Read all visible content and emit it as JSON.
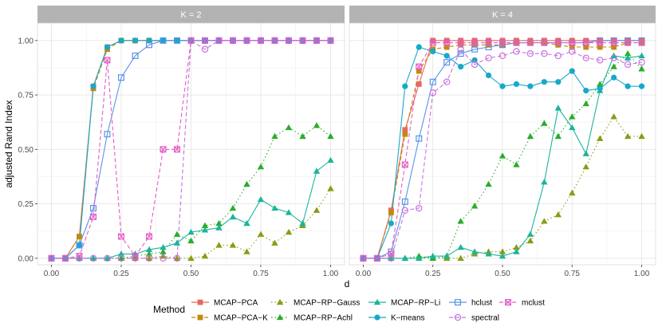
{
  "chart_data": {
    "type": "line",
    "ylabel": "adjusted Rand Index",
    "xlabel": "d",
    "x": [
      0,
      0.05,
      0.1,
      0.15,
      0.2,
      0.25,
      0.3,
      0.35,
      0.4,
      0.45,
      0.5,
      0.55,
      0.6,
      0.65,
      0.7,
      0.75,
      0.8,
      0.85,
      0.9,
      0.95,
      1.0
    ],
    "xlim": [
      -0.05,
      1.05
    ],
    "ylim": [
      -0.03,
      1.08
    ],
    "xticks": [
      "0.00",
      "0.25",
      "0.50",
      "0.75",
      "1.00"
    ],
    "xtick_values": [
      0,
      0.25,
      0.5,
      0.75,
      1.0
    ],
    "yticks": [
      "0.00",
      "0.25",
      "0.50",
      "0.75",
      "1.00"
    ],
    "ytick_values": [
      0,
      0.25,
      0.5,
      0.75,
      1.0
    ],
    "legend": {
      "title": "Method",
      "position": "bottom"
    },
    "methods": [
      {
        "key": "mcap_pca",
        "name": "MCAP−PCA",
        "color": "#E8685C",
        "shape": "square",
        "dash": "solid"
      },
      {
        "key": "mcap_pca_k",
        "name": "MCAP−PCA−K",
        "color": "#C38A0E",
        "shape": "square",
        "dash": "dashed"
      },
      {
        "key": "mcap_rp_gauss",
        "name": "MCAP−RP−Gauss",
        "color": "#8C9B14",
        "shape": "triangle",
        "dash": "dotted"
      },
      {
        "key": "mcap_rp_achl",
        "name": "MCAP−RP−Achl",
        "color": "#2AAD2A",
        "shape": "triangle",
        "dash": "dotted"
      },
      {
        "key": "mcap_rp_li",
        "name": "MCAP−RP−Li",
        "color": "#1AB59A",
        "shape": "triangle",
        "dash": "solid"
      },
      {
        "key": "kmeans",
        "name": "K−means",
        "color": "#16A9C9",
        "shape": "circle",
        "dash": "solid"
      },
      {
        "key": "hclust",
        "name": "hclust",
        "color": "#5B93E8",
        "shape": "square-open",
        "dash": "solid"
      },
      {
        "key": "spectral",
        "name": "spectral",
        "color": "#C971E0",
        "shape": "circle-open",
        "dash": "dashed"
      },
      {
        "key": "mclust",
        "name": "mclust",
        "color": "#E55CC6",
        "shape": "square-x",
        "dash": "dashed"
      }
    ],
    "panels": [
      {
        "label": "K = 2",
        "series": {
          "mcap_pca": [
            0.0,
            0.0,
            0.1,
            0.79,
            0.97,
            1.0,
            1.0,
            1.0,
            1.0,
            1.0,
            1.0,
            1.0,
            1.0,
            1.0,
            1.0,
            1.0,
            1.0,
            1.0,
            1.0,
            1.0,
            1.0
          ],
          "mcap_pca_k": [
            0.0,
            0.0,
            0.1,
            0.78,
            0.96,
            1.0,
            1.0,
            1.0,
            1.0,
            1.0,
            1.0,
            1.0,
            1.0,
            1.0,
            1.0,
            1.0,
            1.0,
            1.0,
            1.0,
            1.0,
            1.0
          ],
          "mcap_rp_gauss": [
            0.0,
            0.0,
            0.0,
            0.0,
            0.0,
            0.0,
            0.0,
            0.0,
            0.01,
            0.0,
            0.0,
            0.01,
            0.06,
            0.06,
            0.03,
            0.11,
            0.07,
            0.12,
            0.15,
            0.22,
            0.32
          ],
          "mcap_rp_achl": [
            0.0,
            0.0,
            0.0,
            0.0,
            0.0,
            0.0,
            0.01,
            0.02,
            0.03,
            0.11,
            0.08,
            0.15,
            0.16,
            0.23,
            0.34,
            0.42,
            0.56,
            0.6,
            0.56,
            0.61,
            0.56
          ],
          "mcap_rp_li": [
            0.0,
            0.0,
            0.0,
            0.0,
            0.0,
            0.02,
            0.02,
            0.04,
            0.05,
            0.07,
            0.12,
            0.13,
            0.14,
            0.19,
            0.16,
            0.27,
            0.23,
            0.21,
            0.16,
            0.4,
            0.45
          ],
          "kmeans": [
            0.0,
            0.0,
            0.06,
            0.79,
            0.97,
            1.0,
            1.0,
            1.0,
            1.0,
            1.0,
            1.0,
            1.0,
            1.0,
            1.0,
            1.0,
            1.0,
            1.0,
            1.0,
            1.0,
            1.0,
            1.0
          ],
          "hclust": [
            0.0,
            0.0,
            0.06,
            0.23,
            0.57,
            0.83,
            0.93,
            0.98,
            1.0,
            1.0,
            1.0,
            1.0,
            1.0,
            1.0,
            1.0,
            1.0,
            1.0,
            1.0,
            1.0,
            1.0,
            1.0
          ],
          "spectral": [
            0.0,
            0.0,
            0.0,
            0.0,
            0.0,
            0.0,
            0.0,
            0.0,
            0.0,
            0.0,
            1.0,
            0.96,
            1.0,
            1.0,
            1.0,
            1.0,
            1.0,
            1.0,
            1.0,
            1.0,
            1.0
          ],
          "mclust": [
            0.0,
            0.0,
            0.01,
            0.19,
            0.91,
            0.1,
            0.01,
            0.1,
            0.5,
            0.5,
            1.0,
            1.0,
            1.0,
            1.0,
            1.0,
            1.0,
            1.0,
            1.0,
            1.0,
            1.0,
            1.0
          ]
        }
      },
      {
        "label": "K = 4",
        "series": {
          "mcap_pca": [
            0.0,
            0.0,
            0.22,
            0.59,
            0.8,
            1.0,
            1.0,
            1.0,
            1.0,
            1.0,
            1.0,
            1.0,
            1.0,
            1.0,
            1.0,
            1.0,
            1.0,
            1.0,
            1.0,
            1.0,
            1.0
          ],
          "mcap_pca_k": [
            0.0,
            0.0,
            0.21,
            0.57,
            0.86,
            0.96,
            0.97,
            0.98,
            0.98,
            0.98,
            0.98,
            0.99,
            0.99,
            0.99,
            0.98,
            0.97,
            0.97,
            0.97,
            0.97,
            0.99,
            0.99
          ],
          "mcap_rp_gauss": [
            0.0,
            0.0,
            0.0,
            0.0,
            0.0,
            0.0,
            0.0,
            0.0,
            0.02,
            0.03,
            0.03,
            0.05,
            0.08,
            0.17,
            0.2,
            0.3,
            0.42,
            0.55,
            0.65,
            0.56,
            0.56
          ],
          "mcap_rp_achl": [
            0.0,
            0.0,
            0.0,
            0.0,
            0.01,
            0.0,
            0.01,
            0.17,
            0.24,
            0.34,
            0.47,
            0.43,
            0.56,
            0.62,
            0.56,
            0.65,
            0.71,
            0.8,
            0.88,
            0.94,
            0.87
          ],
          "mcap_rp_li": [
            0.0,
            0.0,
            0.0,
            0.0,
            0.0,
            0.01,
            0.01,
            0.05,
            0.03,
            0.02,
            0.01,
            0.03,
            0.11,
            0.35,
            0.69,
            0.6,
            0.48,
            0.77,
            0.93,
            0.92,
            0.93
          ],
          "kmeans": [
            0.0,
            0.0,
            0.16,
            0.79,
            0.97,
            0.95,
            0.93,
            0.88,
            0.91,
            0.84,
            0.79,
            0.8,
            0.79,
            0.81,
            0.81,
            0.86,
            0.77,
            0.78,
            0.83,
            0.79,
            0.79
          ],
          "hclust": [
            0.0,
            0.0,
            0.03,
            0.26,
            0.55,
            0.81,
            0.9,
            0.94,
            0.96,
            0.97,
            0.98,
            0.99,
            0.99,
            0.99,
            0.99,
            0.99,
            0.99,
            1.0,
            1.0,
            1.0,
            1.0
          ],
          "spectral": [
            0.0,
            0.0,
            0.0,
            0.22,
            0.23,
            0.76,
            0.81,
            0.96,
            0.89,
            0.92,
            0.93,
            0.95,
            0.94,
            0.94,
            0.93,
            0.95,
            0.92,
            0.91,
            0.92,
            0.89,
            0.9
          ],
          "mclust": [
            0.0,
            0.0,
            0.02,
            0.43,
            0.88,
            0.99,
            0.99,
            0.99,
            0.99,
            0.99,
            0.99,
            0.99,
            0.99,
            0.99,
            0.99,
            0.99,
            0.99,
            0.99,
            0.99,
            0.99,
            0.99
          ]
        }
      }
    ]
  }
}
